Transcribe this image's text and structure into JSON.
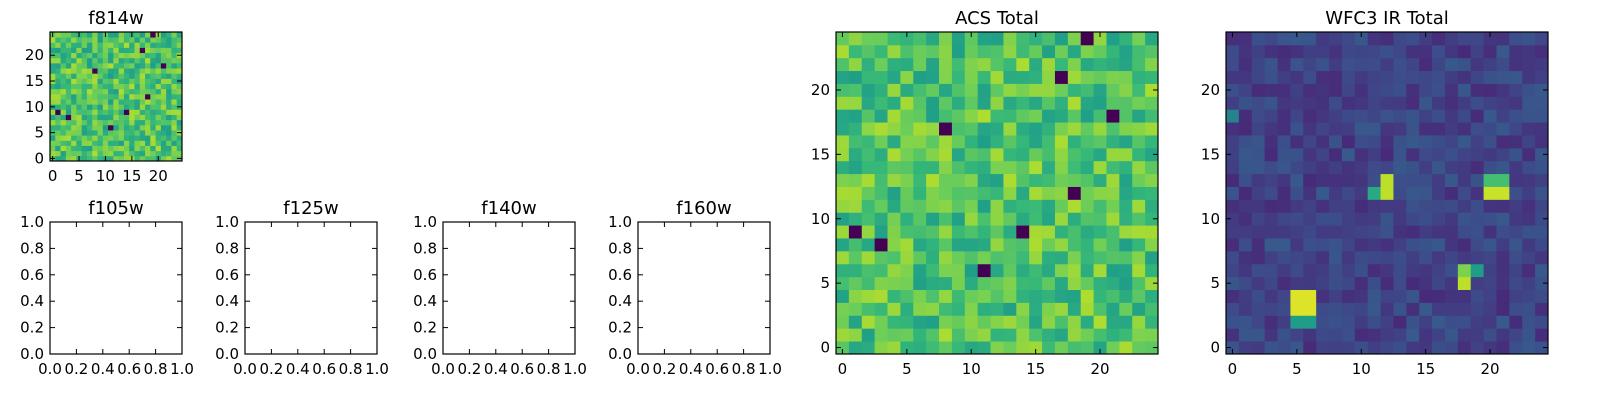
{
  "chart_data": [
    {
      "type": "heatmap",
      "title": "f814w",
      "colormap": "viridis",
      "image": "acs",
      "xlim": [
        -0.5,
        24.5
      ],
      "ylim": [
        -0.5,
        24.5
      ],
      "xticks": [
        0,
        5,
        10,
        15,
        20
      ],
      "yticks": [
        0,
        5,
        10,
        15,
        20
      ]
    },
    {
      "type": "heatmap",
      "title": "ACS Total",
      "colormap": "viridis",
      "image": "acs",
      "xlim": [
        -0.5,
        24.5
      ],
      "ylim": [
        -0.5,
        24.5
      ],
      "xticks": [
        0,
        5,
        10,
        15,
        20
      ],
      "yticks": [
        0,
        5,
        10,
        15,
        20
      ]
    },
    {
      "type": "heatmap",
      "title": "WFC3 IR Total",
      "colormap": "viridis",
      "image": "ir",
      "xlim": [
        -0.5,
        24.5
      ],
      "ylim": [
        -0.5,
        24.5
      ],
      "xticks": [
        0,
        5,
        10,
        15,
        20
      ],
      "yticks": [
        0,
        5,
        10,
        15,
        20
      ]
    },
    {
      "type": "scatter",
      "title": "f105w",
      "xlim": [
        0,
        1
      ],
      "ylim": [
        0,
        1
      ],
      "xticks": [
        "0.0",
        "0.2",
        "0.4",
        "0.6",
        "0.8",
        "1.0"
      ],
      "yticks": [
        "0.0",
        "0.2",
        "0.4",
        "0.6",
        "0.8",
        "1.0"
      ]
    },
    {
      "type": "scatter",
      "title": "f125w",
      "xlim": [
        0,
        1
      ],
      "ylim": [
        0,
        1
      ],
      "xticks": [
        "0.0",
        "0.2",
        "0.4",
        "0.6",
        "0.8",
        "1.0"
      ],
      "yticks": [
        "0.0",
        "0.2",
        "0.4",
        "0.6",
        "0.8",
        "1.0"
      ]
    },
    {
      "type": "scatter",
      "title": "f140w",
      "xlim": [
        0,
        1
      ],
      "ylim": [
        0,
        1
      ],
      "xticks": [
        "0.0",
        "0.2",
        "0.4",
        "0.6",
        "0.8",
        "1.0"
      ],
      "yticks": [
        "0.0",
        "0.2",
        "0.4",
        "0.6",
        "0.8",
        "1.0"
      ]
    },
    {
      "type": "scatter",
      "title": "f160w",
      "xlim": [
        0,
        1
      ],
      "ylim": [
        0,
        1
      ],
      "xticks": [
        "0.0",
        "0.2",
        "0.4",
        "0.6",
        "0.8",
        "1.0"
      ],
      "yticks": [
        "0.0",
        "0.2",
        "0.4",
        "0.6",
        "0.8",
        "1.0"
      ]
    }
  ],
  "images": {
    "acs": {
      "vmin": 0,
      "vmax": 1,
      "background": 0.72,
      "noise": 0.16,
      "minima": [
        [
          1,
          9
        ],
        [
          3,
          8
        ],
        [
          19,
          24
        ],
        [
          21,
          18
        ],
        [
          17,
          21
        ],
        [
          11,
          6
        ],
        [
          14,
          9
        ],
        [
          18,
          12
        ],
        [
          8,
          17
        ]
      ]
    },
    "ir": {
      "vmin": 0,
      "vmax": 1,
      "background": 0.2,
      "noise": 0.08,
      "sources": [
        [
          5,
          3,
          0.95
        ],
        [
          6,
          3,
          0.95
        ],
        [
          5,
          4,
          0.95
        ],
        [
          6,
          4,
          0.95
        ],
        [
          5,
          2,
          0.55
        ],
        [
          6,
          2,
          0.55
        ],
        [
          12,
          12,
          0.9
        ],
        [
          12,
          13,
          0.9
        ],
        [
          11,
          12,
          0.6
        ],
        [
          20,
          12,
          0.92
        ],
        [
          21,
          12,
          0.92
        ],
        [
          20,
          13,
          0.7
        ],
        [
          21,
          13,
          0.7
        ],
        [
          18,
          5,
          0.9
        ],
        [
          18,
          6,
          0.8
        ],
        [
          19,
          6,
          0.55
        ],
        [
          0,
          18,
          0.45
        ]
      ]
    }
  },
  "colors": {
    "viridis": [
      "#440154",
      "#482878",
      "#3e4989",
      "#31688e",
      "#26828e",
      "#1f9e89",
      "#35b779",
      "#6ece58",
      "#b5de2b",
      "#fde725"
    ],
    "axes": "#000000"
  }
}
